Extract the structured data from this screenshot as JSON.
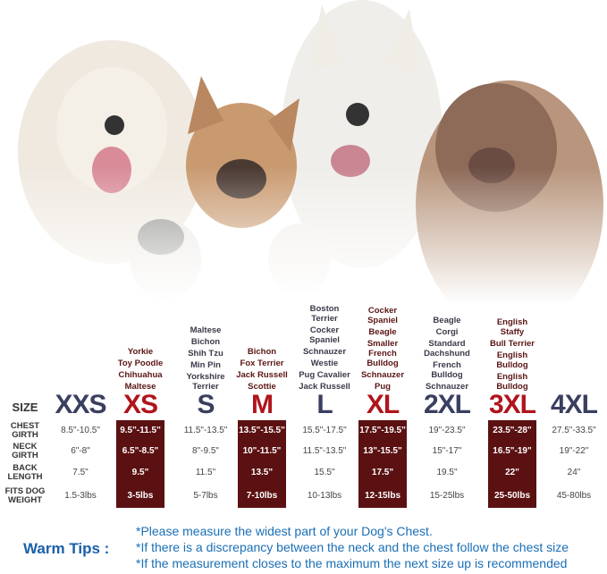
{
  "header": {
    "size_label": "SIZE"
  },
  "row_labels": {
    "chest": "CHEST GIRTH",
    "neck": "NECK GIRTH",
    "back": "BACK LENGTH",
    "weight": "FITS DOG WEIGHT"
  },
  "sizes": [
    {
      "name": "XXS",
      "highlight": false,
      "breeds": [],
      "chest": "8.5\"-10.5\"",
      "neck": "6\"-8\"",
      "back": "7.5\"",
      "weight": "1.5-3lbs"
    },
    {
      "name": "XS",
      "highlight": true,
      "breeds": [
        "Yorkie",
        "Toy Poodle",
        "Chihuahua",
        "Maltese"
      ],
      "chest": "9.5\"-11.5\"",
      "neck": "6.5\"-8.5\"",
      "back": "9.5\"",
      "weight": "3-5lbs"
    },
    {
      "name": "S",
      "highlight": false,
      "breeds": [
        "Maltese",
        "Bichon",
        "Shih Tzu",
        "Min Pin",
        "Yorkshire Terrier"
      ],
      "chest": "11.5\"-13.5\"",
      "neck": "8\"-9.5\"",
      "back": "11.5\"",
      "weight": "5-7lbs"
    },
    {
      "name": "M",
      "highlight": true,
      "breeds": [
        "Bichon",
        "Fox Terrier",
        "Jack Russell",
        "Scottie"
      ],
      "chest": "13.5\"-15.5\"",
      "neck": "10\"-11.5\"",
      "back": "13.5\"",
      "weight": "7-10lbs"
    },
    {
      "name": "L",
      "highlight": false,
      "breeds": [
        "Boston Terrier",
        "Cocker Spaniel",
        "Schnauzer",
        "Westie",
        "Pug Cavalier",
        "Jack Russell"
      ],
      "chest": "15.5\"-17.5\"",
      "neck": "11.5\"-13.5\"",
      "back": "15.5\"",
      "weight": "10-13lbs"
    },
    {
      "name": "XL",
      "highlight": true,
      "breeds": [
        "Cocker Spaniel",
        "Beagle",
        "Smaller French Bulldog",
        "Schnauzer",
        "Pug"
      ],
      "chest": "17.5\"-19.5\"",
      "neck": "13\"-15.5\"",
      "back": "17.5\"",
      "weight": "12-15lbs"
    },
    {
      "name": "2XL",
      "highlight": false,
      "breeds": [
        "Beagle",
        "Corgi",
        "Standard Dachshund",
        "French Bulldog",
        "Schnauzer"
      ],
      "chest": "19\"-23.5\"",
      "neck": "15\"-17\"",
      "back": "19.5\"",
      "weight": "15-25lbs"
    },
    {
      "name": "3XL",
      "highlight": true,
      "breeds": [
        "English Staffy",
        "Bull Terrier",
        "English Bulldog",
        "English Bulldog"
      ],
      "chest": "23.5\"-28\"",
      "neck": "16.5\"-19\"",
      "back": "22\"",
      "weight": "25-50lbs"
    },
    {
      "name": "4XL",
      "highlight": false,
      "breeds": [],
      "chest": "27.5\"-33.5\"",
      "neck": "19\"-22\"",
      "back": "24\"",
      "weight": "45-80lbs"
    }
  ],
  "tips": {
    "title": "Warm Tips :",
    "lines": [
      "*Please measure the widest part of your Dog's Chest.",
      "*If there is a discrepancy between the neck and the chest  follow the chest size",
      "*If the measurement closes to the maximum the next size up is recommended"
    ]
  }
}
